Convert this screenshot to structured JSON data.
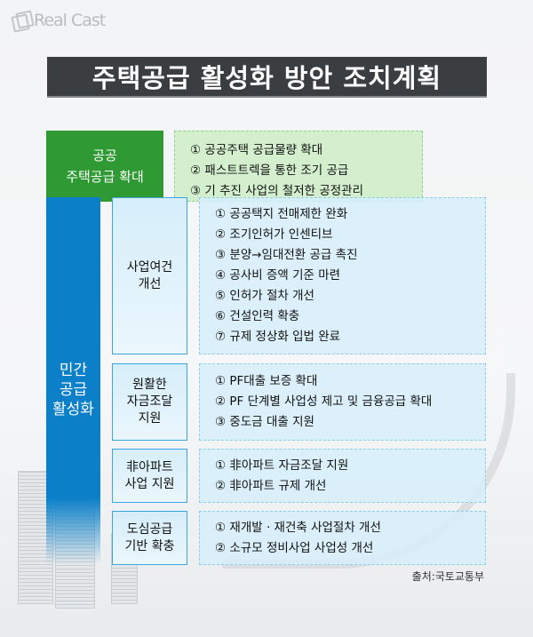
{
  "logo": {
    "text": "Real Cast"
  },
  "title": "주택공급 활성화 방안 조치계획",
  "public": {
    "label_lines": [
      "공공",
      "주택공급 확대"
    ],
    "items": [
      "① 공공주택 공급물량 확대",
      "② 패스트트렉을 통한 조기 공급",
      "③ 기 추진 사업의 철저한 공정관리"
    ],
    "color": "#2f9a33"
  },
  "private": {
    "label_lines": [
      "민간",
      "공급",
      "활성화"
    ],
    "color": "#0b80c9",
    "groups": [
      {
        "label_lines": [
          "사업여건",
          "개선"
        ],
        "items": [
          "① 공공택지 전매제한 완화",
          "② 조기인허가 인센티브",
          "③ 분양→임대전환 공급 촉진",
          "④ 공사비 증액 기준 마련",
          "⑤ 인허가 절차 개선",
          "⑥ 건설인력 확충",
          "⑦ 규제 정상화 입법 완료"
        ]
      },
      {
        "label_lines": [
          "원활한",
          "자금조달",
          "지원"
        ],
        "items": [
          "① PF대출 보증 확대",
          "② PF 단계별 사업성 제고 및 금융공급 확대",
          "③ 중도금 대출 지원"
        ]
      },
      {
        "label_lines": [
          "非아파트",
          "사업 지원"
        ],
        "items": [
          "① 非아파트 자금조달 지원",
          "② 非아파트 규제 개선"
        ]
      },
      {
        "label_lines": [
          "도심공급",
          "기반 확충"
        ],
        "items": [
          "①  재개발 · 재건축 사업절차 개선",
          "②  소규모 정비사업 사업성 개선"
        ]
      }
    ]
  },
  "source": "출처:국토교통부"
}
